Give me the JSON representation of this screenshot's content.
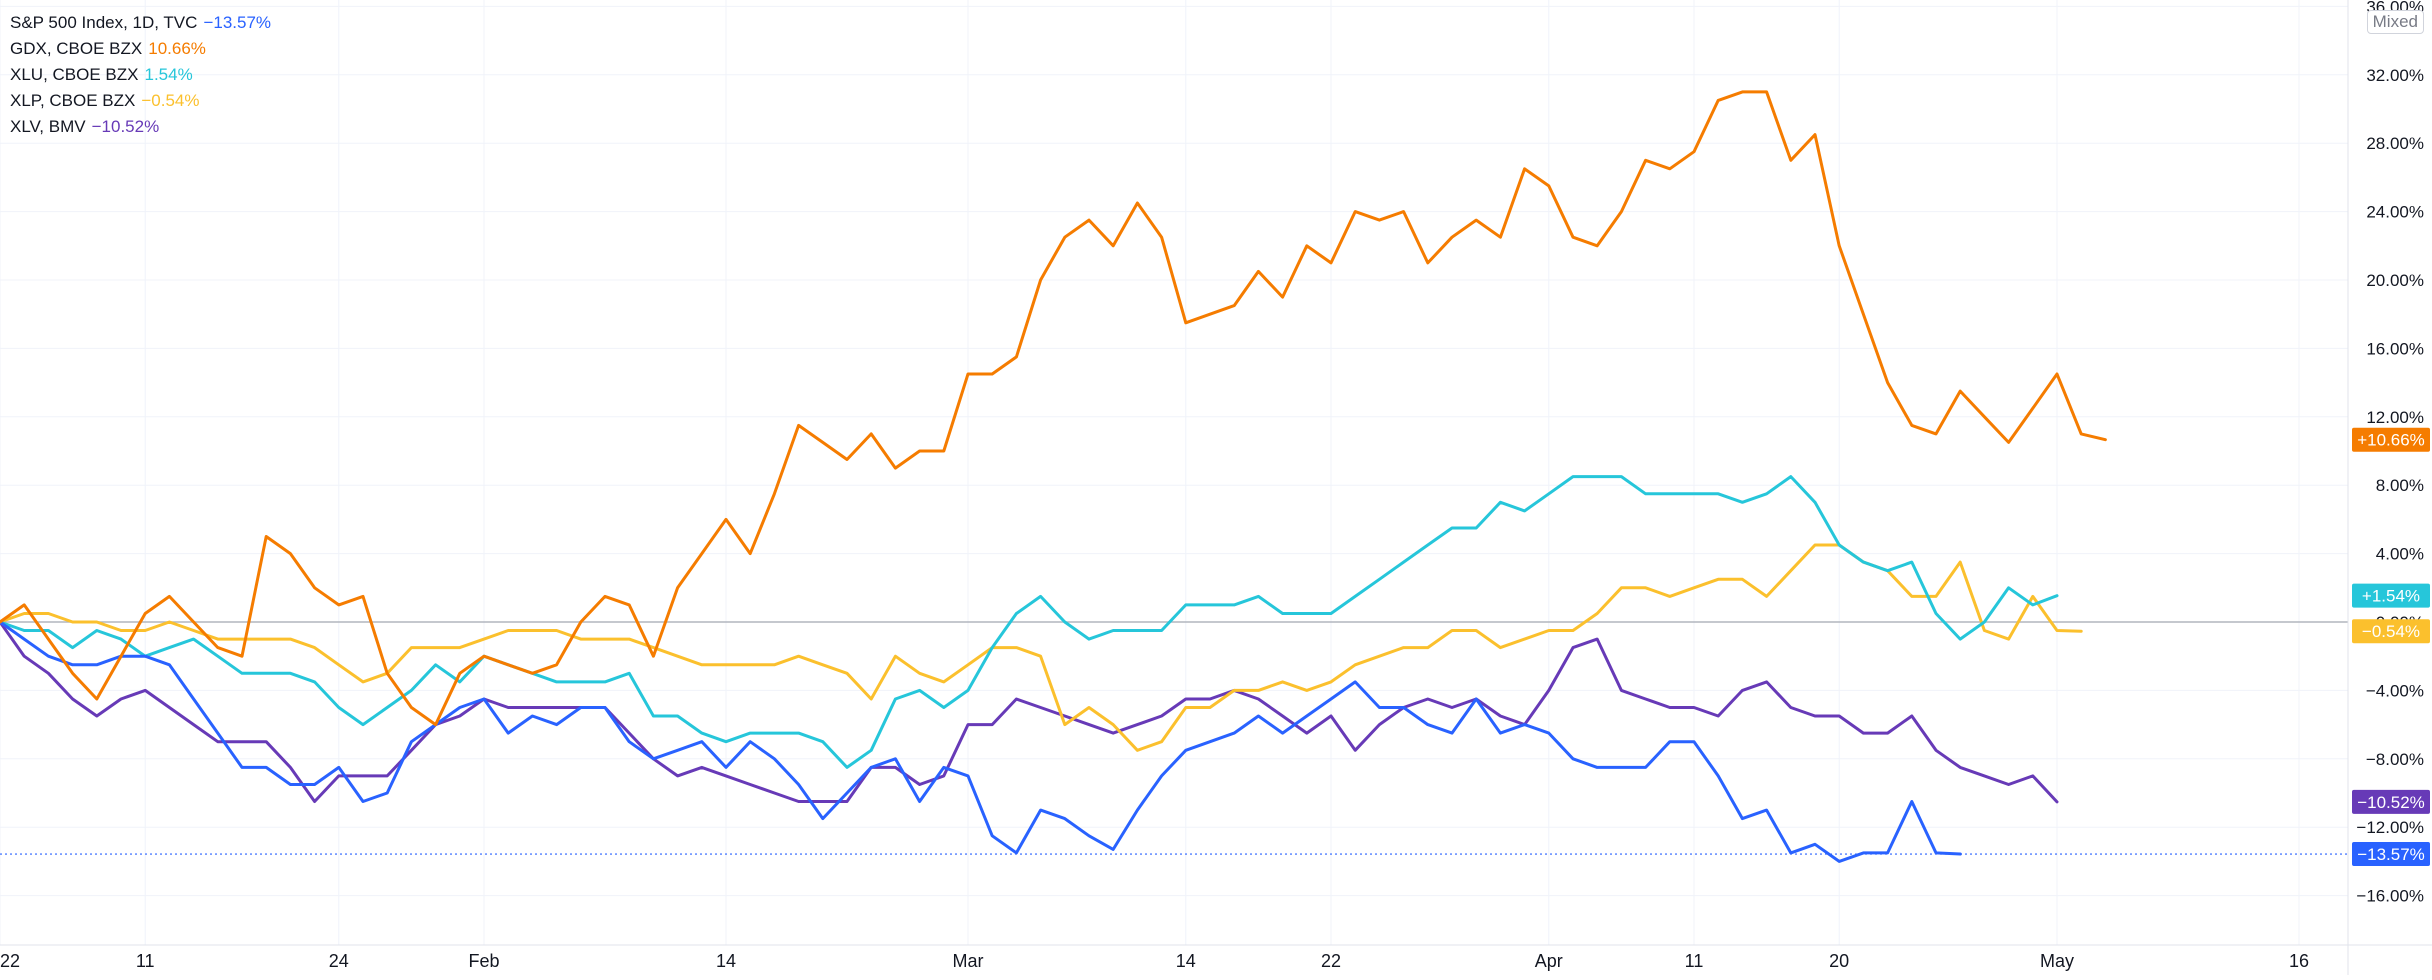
{
  "legend": [
    {
      "name": "S&P 500 Index, 1D, TVC",
      "value": "−13.57%",
      "color": "#2962ff"
    },
    {
      "name": "GDX, CBOE BZX",
      "value": "10.66%",
      "color": "#f57c00"
    },
    {
      "name": "XLU, CBOE BZX",
      "value": "1.54%",
      "color": "#26c6da"
    },
    {
      "name": "XLP, CBOE BZX",
      "value": "−0.54%",
      "color": "#fbc02d"
    },
    {
      "name": "XLV, BMV",
      "value": "−10.52%",
      "color": "#673ab7"
    }
  ],
  "scale_mode": "Mixed",
  "chart_data": {
    "type": "line",
    "x_tick_labels": [
      "22",
      "11",
      "24",
      "Feb",
      "14",
      "Mar",
      "14",
      "22",
      "Apr",
      "11",
      "20",
      "May",
      "16"
    ],
    "x_tick_index": [
      0,
      6,
      14,
      20,
      30,
      40,
      49,
      55,
      64,
      70,
      76,
      85,
      95
    ],
    "y_ticks": [
      -16,
      -12,
      -8,
      -4,
      0,
      4,
      8,
      12,
      16,
      20,
      24,
      28,
      32,
      36
    ],
    "y_tick_labels": [
      "−16.00%",
      "−12.00%",
      "−8.00%",
      "−4.00%",
      "0.00%",
      "4.00%",
      "8.00%",
      "12.00%",
      "16.00%",
      "20.00%",
      "24.00%",
      "28.00%",
      "32.00%",
      "36.00%"
    ],
    "ylim": [
      -17,
      36
    ],
    "series": [
      {
        "name": "S&P 500 Index, 1D, TVC",
        "color": "#2962ff",
        "last_label": "−13.57%",
        "values": [
          0,
          -1.0,
          -2.0,
          -2.5,
          -2.5,
          -2.0,
          -2.0,
          -2.5,
          -4.5,
          -6.5,
          -8.5,
          -8.5,
          -9.5,
          -9.5,
          -8.5,
          -10.5,
          -10.0,
          -7.0,
          -6.0,
          -5.0,
          -4.5,
          -6.5,
          -5.5,
          -6.0,
          -5.0,
          -5.0,
          -7.0,
          -8.0,
          -7.5,
          -7.0,
          -8.5,
          -7.0,
          -8.0,
          -9.5,
          -11.5,
          -10.0,
          -8.5,
          -8.0,
          -10.5,
          -8.5,
          -9.0,
          -12.5,
          -13.5,
          -11.0,
          -11.5,
          -12.5,
          -13.3,
          -11.0,
          -9.0,
          -7.5,
          -7.0,
          -6.5,
          -5.5,
          -6.5,
          -5.5,
          -4.5,
          -3.5,
          -5.0,
          -5.0,
          -6.0,
          -6.5,
          -4.5,
          -6.5,
          -6.0,
          -6.5,
          -8.0,
          -8.5,
          -8.5,
          -8.5,
          -7.0,
          -7.0,
          -9.0,
          -11.5,
          -11.0,
          -13.5,
          -13.0,
          -14.0,
          -13.5,
          -13.5,
          -10.5,
          -13.5,
          -13.57
        ]
      },
      {
        "name": "GDX, CBOE BZX",
        "color": "#f57c00",
        "last_label": "+10.66%",
        "values": [
          0,
          1.0,
          -1.0,
          -3.0,
          -4.5,
          -2.0,
          0.5,
          1.5,
          0,
          -1.5,
          -2.0,
          5.0,
          4.0,
          2.0,
          1.0,
          1.5,
          -3.0,
          -5.0,
          -6.0,
          -3.0,
          -2.0,
          -2.5,
          -3.0,
          -2.5,
          0,
          1.5,
          1.0,
          -2.0,
          2.0,
          4.0,
          6.0,
          4.0,
          7.5,
          11.5,
          10.5,
          9.5,
          11.0,
          9.0,
          10.0,
          10.0,
          14.5,
          14.5,
          15.5,
          20.0,
          22.5,
          23.5,
          22.0,
          24.5,
          22.5,
          17.5,
          18.0,
          18.5,
          20.5,
          19.0,
          22.0,
          21.0,
          24.0,
          23.5,
          24.0,
          21.0,
          22.5,
          23.5,
          22.5,
          26.5,
          25.5,
          22.5,
          22.0,
          24.0,
          27.0,
          26.5,
          27.5,
          30.5,
          31.0,
          31.0,
          27.0,
          28.5,
          22.0,
          18.0,
          14.0,
          11.5,
          11.0,
          13.5,
          12.0,
          10.5,
          12.5,
          14.5,
          11.0,
          10.66
        ]
      },
      {
        "name": "XLU, CBOE BZX",
        "color": "#26c6da",
        "last_label": "+1.54%",
        "values": [
          0,
          -0.5,
          -0.5,
          -1.5,
          -0.5,
          -1.0,
          -2.0,
          -1.5,
          -1.0,
          -2.0,
          -3.0,
          -3.0,
          -3.0,
          -3.5,
          -5.0,
          -6.0,
          -5.0,
          -4.0,
          -2.5,
          -3.5,
          -2.0,
          -2.5,
          -3.0,
          -3.5,
          -3.5,
          -3.5,
          -3.0,
          -5.5,
          -5.5,
          -6.5,
          -7.0,
          -6.5,
          -6.5,
          -6.5,
          -7.0,
          -8.5,
          -7.5,
          -4.5,
          -4.0,
          -5.0,
          -4.0,
          -1.5,
          0.5,
          1.5,
          0,
          -1.0,
          -0.5,
          -0.5,
          -0.5,
          1.0,
          1.0,
          1.0,
          1.5,
          0.5,
          0.5,
          0.5,
          1.5,
          2.5,
          3.5,
          4.5,
          5.5,
          5.5,
          7.0,
          6.5,
          7.5,
          8.5,
          8.5,
          8.5,
          7.5,
          7.5,
          7.5,
          7.5,
          7.0,
          7.5,
          8.5,
          7.0,
          4.5,
          3.5,
          3.0,
          3.5,
          0.5,
          -1.0,
          0,
          2.0,
          1.0,
          1.54
        ]
      },
      {
        "name": "XLP, CBOE BZX",
        "color": "#fbc02d",
        "last_label": "−0.54%",
        "values": [
          0,
          0.5,
          0.5,
          0,
          0,
          -0.5,
          -0.5,
          0,
          -0.5,
          -1.0,
          -1.0,
          -1.0,
          -1.0,
          -1.5,
          -2.5,
          -3.5,
          -3.0,
          -1.5,
          -1.5,
          -1.5,
          -1.0,
          -0.5,
          -0.5,
          -0.5,
          -1.0,
          -1.0,
          -1.0,
          -1.5,
          -2.0,
          -2.5,
          -2.5,
          -2.5,
          -2.5,
          -2.0,
          -2.5,
          -3.0,
          -4.5,
          -2.0,
          -3.0,
          -3.5,
          -2.5,
          -1.5,
          -1.5,
          -2.0,
          -6.0,
          -5.0,
          -6.0,
          -7.5,
          -7.0,
          -5.0,
          -5.0,
          -4.0,
          -4.0,
          -3.5,
          -4.0,
          -3.5,
          -2.5,
          -2.0,
          -1.5,
          -1.5,
          -0.5,
          -0.5,
          -1.5,
          -1.0,
          -0.5,
          -0.5,
          0.5,
          2.0,
          2.0,
          1.5,
          2.0,
          2.5,
          2.5,
          1.5,
          3.0,
          4.5,
          4.5,
          3.5,
          3.0,
          1.5,
          1.5,
          3.5,
          -0.5,
          -1.0,
          1.5,
          -0.5,
          -0.54
        ]
      },
      {
        "name": "XLV, BMV",
        "color": "#673ab7",
        "last_label": "−10.52%",
        "values": [
          0,
          -2.0,
          -3.0,
          -4.5,
          -5.5,
          -4.5,
          -4.0,
          -5.0,
          -6.0,
          -7.0,
          -7.0,
          -7.0,
          -8.5,
          -10.5,
          -9.0,
          -9.0,
          -9.0,
          -7.5,
          -6.0,
          -5.5,
          -4.5,
          -5.0,
          -5.0,
          -5.0,
          -5.0,
          -5.0,
          -6.5,
          -8.0,
          -9.0,
          -8.5,
          -9.0,
          -9.5,
          -10.0,
          -10.5,
          -10.5,
          -10.5,
          -8.5,
          -8.5,
          -9.5,
          -9.0,
          -6.0,
          -6.0,
          -4.5,
          -5.0,
          -5.5,
          -6.0,
          -6.5,
          -6.0,
          -5.5,
          -4.5,
          -4.5,
          -4.0,
          -4.5,
          -5.5,
          -6.5,
          -5.5,
          -7.5,
          -6.0,
          -5.0,
          -4.5,
          -5.0,
          -4.5,
          -5.5,
          -6.0,
          -4.0,
          -1.5,
          -1.0,
          -4.0,
          -4.5,
          -5.0,
          -5.0,
          -5.5,
          -4.0,
          -3.5,
          -5.0,
          -5.5,
          -5.5,
          -6.5,
          -6.5,
          -5.5,
          -7.5,
          -8.5,
          -9.0,
          -9.5,
          -9.0,
          -10.52
        ]
      }
    ]
  }
}
